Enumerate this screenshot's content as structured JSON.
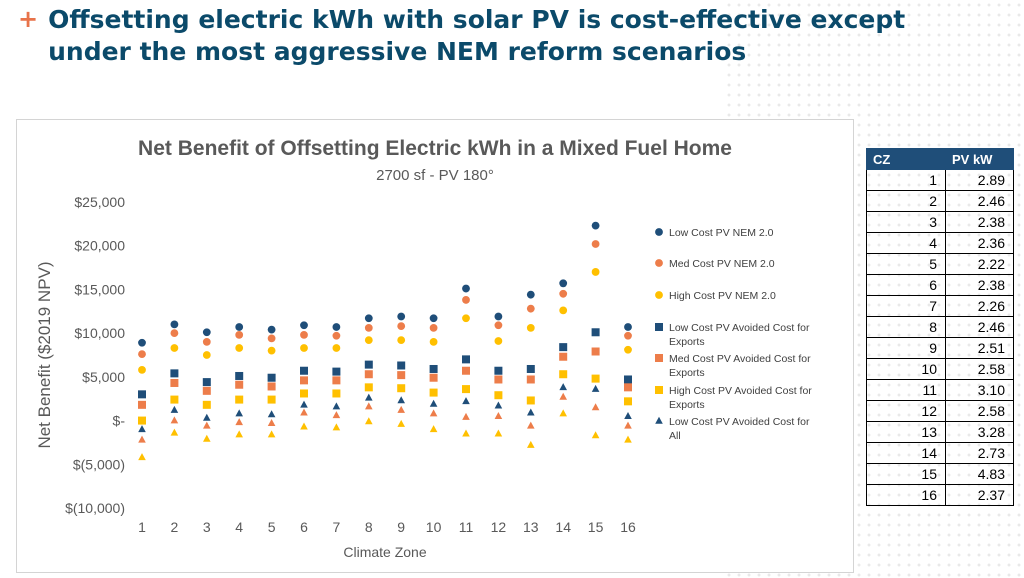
{
  "slide": {
    "bullet_symbol": "+",
    "title": "Offsetting electric kWh with solar PV is cost-effective except under the most aggressive NEM reform scenarios"
  },
  "chart_data": {
    "type": "scatter",
    "title": "Net Benefit of Offsetting Electric kWh in a Mixed Fuel Home",
    "subtitle": "2700 sf - PV 180°",
    "xlabel": "Climate Zone",
    "ylabel": "Net Benefit ($2019 NPV)",
    "ylim": [
      -10000,
      25000
    ],
    "yticks": [
      25000,
      20000,
      15000,
      10000,
      5000,
      0,
      -5000,
      -10000
    ],
    "ytick_labels": [
      "$25,000",
      "$20,000",
      "$15,000",
      "$10,000",
      "$5,000",
      "$-",
      "$(5,000)",
      "$(10,000)"
    ],
    "x": [
      1,
      2,
      3,
      4,
      5,
      6,
      7,
      8,
      9,
      10,
      11,
      12,
      13,
      14,
      15,
      16
    ],
    "grid": false,
    "legend_position": "right",
    "series": [
      {
        "name": "Low Cost PV NEM 2.0",
        "marker": "circle",
        "color": "#1f4e79",
        "values": [
          8900,
          11000,
          10100,
          10700,
          10400,
          10900,
          10700,
          11700,
          11900,
          11700,
          15100,
          11900,
          14400,
          15700,
          22300,
          10700
        ]
      },
      {
        "name": "Med Cost PV NEM 2.0",
        "marker": "circle",
        "color": "#ed7d4a",
        "values": [
          7600,
          10000,
          9000,
          9800,
          9400,
          9800,
          9700,
          10600,
          10800,
          10600,
          13800,
          10900,
          12800,
          14500,
          20200,
          9700
        ]
      },
      {
        "name": "High Cost PV NEM 2.0",
        "marker": "circle",
        "color": "#ffc000",
        "values": [
          5800,
          8300,
          7500,
          8300,
          8000,
          8300,
          8300,
          9200,
          9200,
          9000,
          11700,
          9100,
          10600,
          12600,
          17000,
          8100
        ]
      },
      {
        "name": "Low Cost PV Avoided Cost for Exports",
        "marker": "square",
        "color": "#1f4e79",
        "values": [
          3000,
          5400,
          4400,
          5100,
          4900,
          5700,
          5600,
          6400,
          6300,
          5900,
          7000,
          5700,
          5900,
          8400,
          10100,
          4700
        ]
      },
      {
        "name": "Med Cost PV Avoided Cost for Exports",
        "marker": "square",
        "color": "#ed7d4a",
        "values": [
          1800,
          4300,
          3400,
          4100,
          3900,
          4600,
          4600,
          5300,
          5200,
          4900,
          5700,
          4700,
          4700,
          7300,
          7900,
          3800
        ]
      },
      {
        "name": "High Cost PV Avoided Cost for Exports",
        "marker": "square",
        "color": "#ffc000",
        "values": [
          0,
          2400,
          1800,
          2400,
          2400,
          3100,
          3100,
          3800,
          3700,
          3200,
          3600,
          2900,
          2300,
          5300,
          4800,
          2200
        ]
      },
      {
        "name": "Low Cost PV Avoided Cost for All",
        "marker": "triangle",
        "color": "#1f4e79",
        "values": [
          -1000,
          1200,
          300,
          800,
          700,
          1800,
          1600,
          2600,
          2300,
          1900,
          2200,
          1700,
          900,
          3800,
          3600,
          500
        ]
      },
      {
        "name": "",
        "marker": "triangle",
        "color": "#ed7d4a",
        "values": [
          -2200,
          0,
          -600,
          -200,
          -300,
          900,
          600,
          1600,
          1200,
          800,
          400,
          500,
          -600,
          2700,
          1500,
          -600
        ]
      },
      {
        "name": "",
        "marker": "triangle",
        "color": "#ffc000",
        "values": [
          -4200,
          -1400,
          -2100,
          -1600,
          -1600,
          -700,
          -800,
          -100,
          -400,
          -1000,
          -1500,
          -1500,
          -2800,
          800,
          -1700,
          -2200
        ]
      }
    ]
  },
  "cz_table": {
    "headers": [
      "CZ",
      "PV kW"
    ],
    "rows": [
      [
        "1",
        "2.89"
      ],
      [
        "2",
        "2.46"
      ],
      [
        "3",
        "2.38"
      ],
      [
        "4",
        "2.36"
      ],
      [
        "5",
        "2.22"
      ],
      [
        "6",
        "2.38"
      ],
      [
        "7",
        "2.26"
      ],
      [
        "8",
        "2.46"
      ],
      [
        "9",
        "2.51"
      ],
      [
        "10",
        "2.58"
      ],
      [
        "11",
        "3.10"
      ],
      [
        "12",
        "2.58"
      ],
      [
        "13",
        "3.28"
      ],
      [
        "14",
        "2.73"
      ],
      [
        "15",
        "4.83"
      ],
      [
        "16",
        "2.37"
      ]
    ]
  }
}
